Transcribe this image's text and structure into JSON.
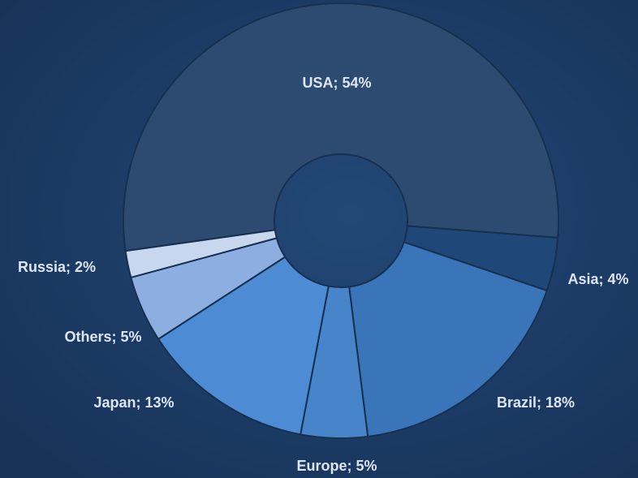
{
  "chart_data": {
    "type": "donut",
    "categories": [
      "USA",
      "Asia",
      "Brazil",
      "Europe",
      "Japan",
      "Others",
      "Russia"
    ],
    "values": [
      54,
      4,
      18,
      5,
      13,
      5,
      2
    ],
    "value_labels": [
      "USA; 54%",
      "Asia; 4%",
      "Brazil; 18%",
      "Europe; 5%",
      "Japan; 13%",
      "Others; 5%",
      "Russia; 2%"
    ],
    "colors": [
      "#2d4a70",
      "#1f4778",
      "#3a74b9",
      "#4884c9",
      "#4d8bd5",
      "#8caee0",
      "#c8d7ee"
    ]
  }
}
